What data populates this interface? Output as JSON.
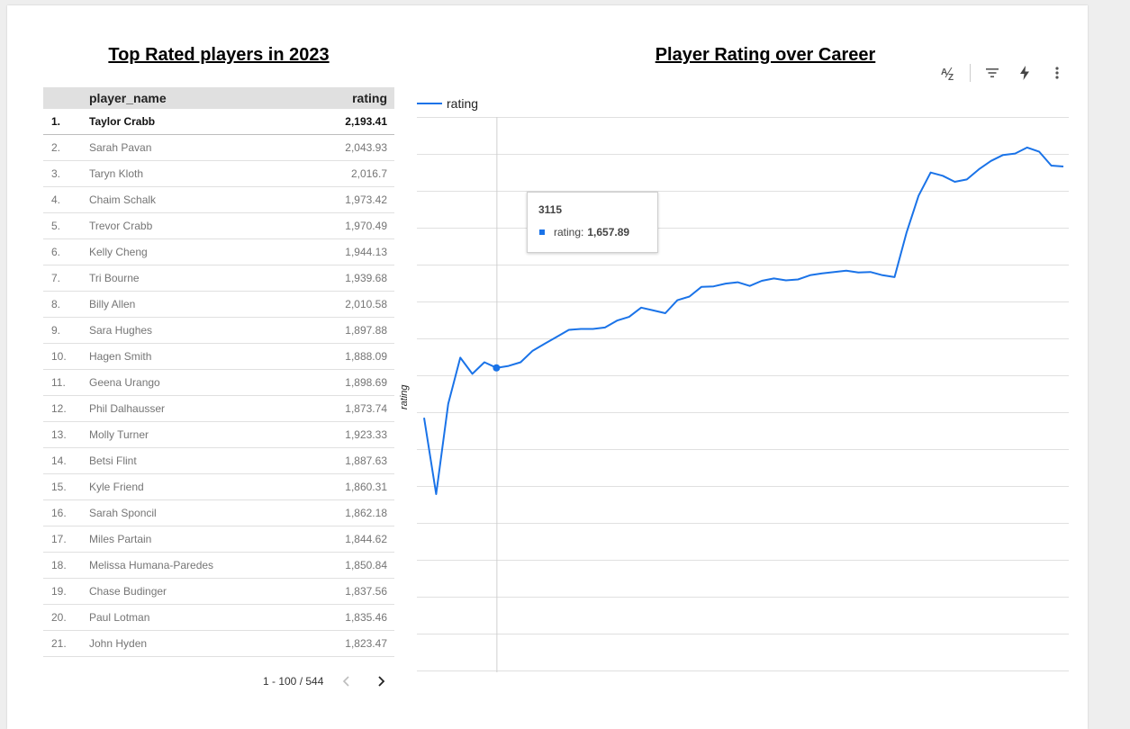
{
  "table": {
    "title": "Top Rated players in 2023",
    "headers": {
      "name": "player_name",
      "rating": "rating"
    },
    "rows": [
      {
        "idx": "1.",
        "name": "Taylor Crabb",
        "rating": "2,193.41"
      },
      {
        "idx": "2.",
        "name": "Sarah Pavan",
        "rating": "2,043.93"
      },
      {
        "idx": "3.",
        "name": "Taryn Kloth",
        "rating": "2,016.7"
      },
      {
        "idx": "4.",
        "name": "Chaim Schalk",
        "rating": "1,973.42"
      },
      {
        "idx": "5.",
        "name": "Trevor Crabb",
        "rating": "1,970.49"
      },
      {
        "idx": "6.",
        "name": "Kelly Cheng",
        "rating": "1,944.13"
      },
      {
        "idx": "7.",
        "name": "Tri Bourne",
        "rating": "1,939.68"
      },
      {
        "idx": "8.",
        "name": "Billy Allen",
        "rating": "2,010.58"
      },
      {
        "idx": "9.",
        "name": "Sara Hughes",
        "rating": "1,897.88"
      },
      {
        "idx": "10.",
        "name": "Hagen Smith",
        "rating": "1,888.09"
      },
      {
        "idx": "11.",
        "name": "Geena Urango",
        "rating": "1,898.69"
      },
      {
        "idx": "12.",
        "name": "Phil Dalhausser",
        "rating": "1,873.74"
      },
      {
        "idx": "13.",
        "name": "Molly Turner",
        "rating": "1,923.33"
      },
      {
        "idx": "14.",
        "name": "Betsi Flint",
        "rating": "1,887.63"
      },
      {
        "idx": "15.",
        "name": "Kyle Friend",
        "rating": "1,860.31"
      },
      {
        "idx": "16.",
        "name": "Sarah Sponcil",
        "rating": "1,862.18"
      },
      {
        "idx": "17.",
        "name": "Miles Partain",
        "rating": "1,844.62"
      },
      {
        "idx": "18.",
        "name": "Melissa Humana-Paredes",
        "rating": "1,850.84"
      },
      {
        "idx": "19.",
        "name": "Chase Budinger",
        "rating": "1,837.56"
      },
      {
        "idx": "20.",
        "name": "Paul Lotman",
        "rating": "1,835.46"
      },
      {
        "idx": "21.",
        "name": "John Hyden",
        "rating": "1,823.47"
      }
    ],
    "pagination": "1 - 100 / 544"
  },
  "toolbar": {
    "icons": [
      "sort-az-icon",
      "filter-icon",
      "lightning-icon",
      "more-vert-icon"
    ]
  },
  "chart_data": {
    "type": "line",
    "title": "Player Rating over Career",
    "ylabel": "rating",
    "legend": "top-left",
    "grid": true,
    "series": [
      {
        "name": "rating",
        "color": "#1a73e8",
        "values": [
          1550,
          1385,
          1580,
          1680,
          1645,
          1670,
          1657.89,
          1662,
          1670,
          1695,
          1710,
          1725,
          1740,
          1742,
          1742,
          1745,
          1760,
          1768,
          1788,
          1782,
          1776,
          1804,
          1812,
          1833,
          1834,
          1840,
          1843,
          1835,
          1846,
          1851,
          1847,
          1849,
          1858,
          1862,
          1865,
          1868,
          1864,
          1865,
          1858,
          1854,
          1950,
          2030,
          2080,
          2073,
          2060,
          2065,
          2087,
          2105,
          2118,
          2121,
          2134,
          2125,
          2095,
          2093
        ]
      }
    ],
    "tooltip": {
      "title": "3115",
      "series": "rating:",
      "value": "1,657.89",
      "index": 6
    }
  }
}
